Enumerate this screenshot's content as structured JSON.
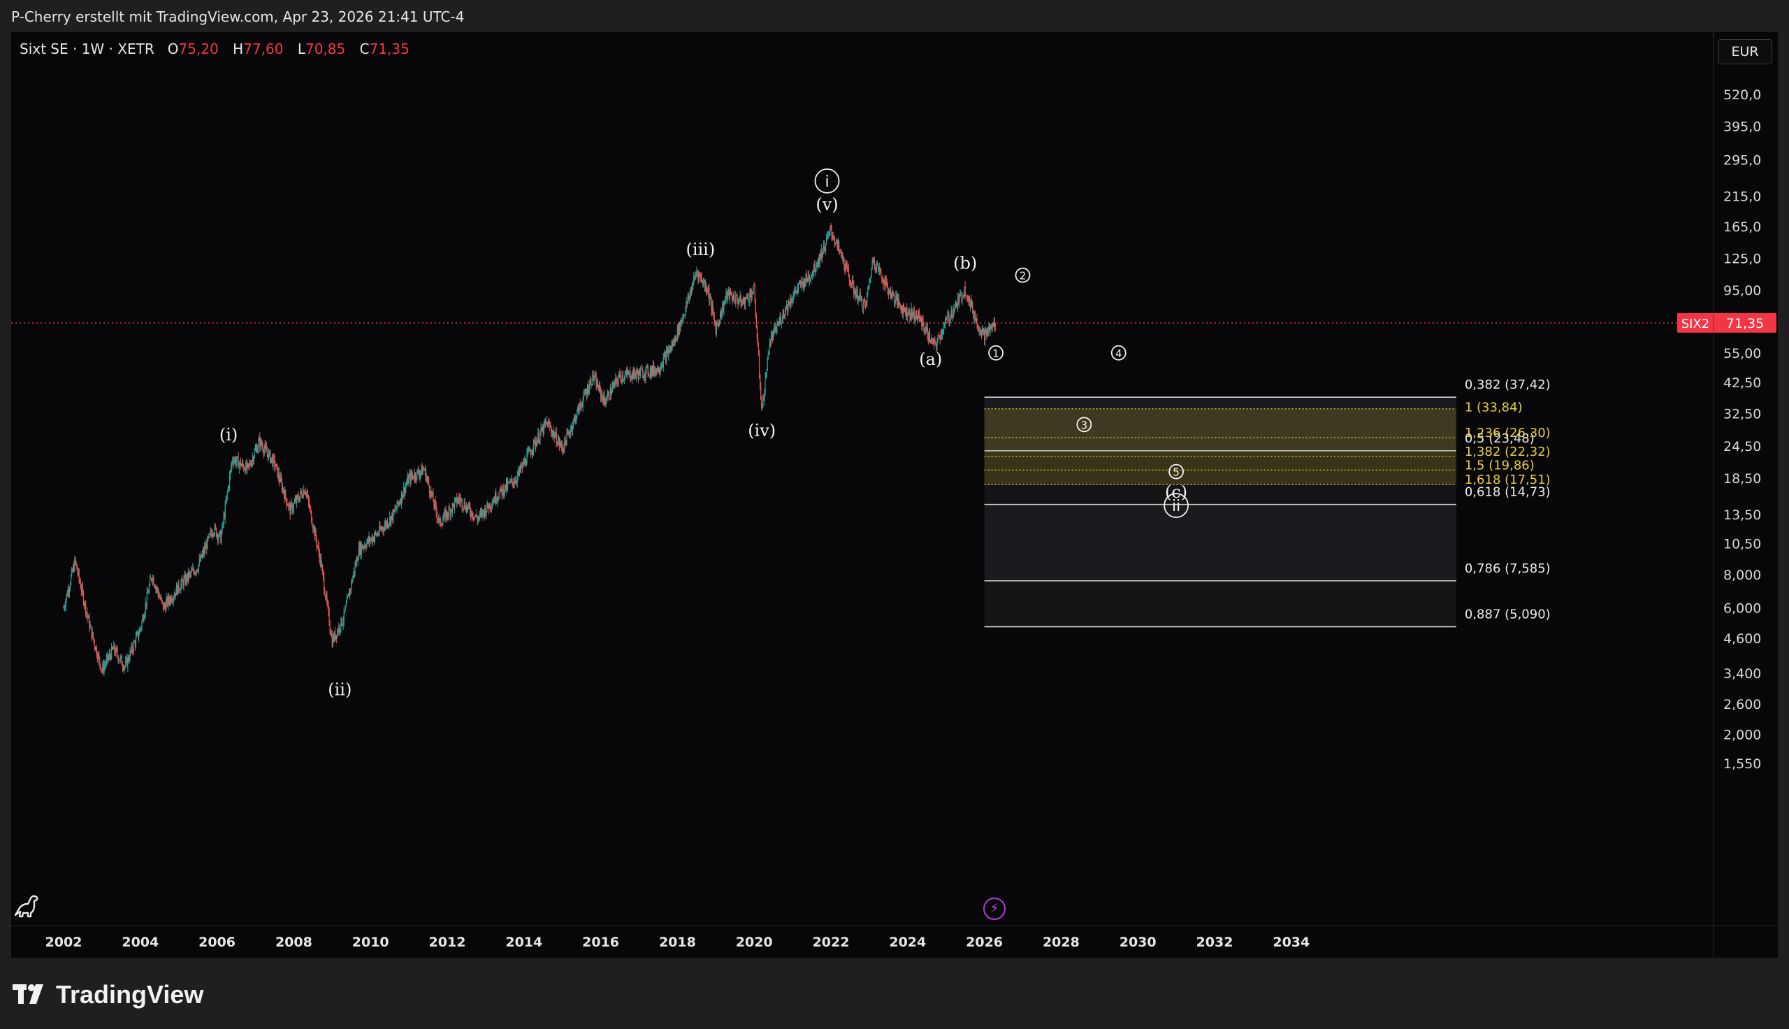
{
  "header": {
    "credit": "P-Cherry erstellt mit TradingView.com, Apr 23, 2026 21:41 UTC-4"
  },
  "legend": {
    "symbol": "Sixt SE · 1W · XETR",
    "o_label": "O",
    "o_value": "75,20",
    "h_label": "H",
    "h_value": "77,60",
    "l_label": "L",
    "l_value": "70,85",
    "c_label": "C",
    "c_value": "71,35"
  },
  "currency_button": "EUR",
  "brand": {
    "name": "TradingView"
  },
  "colors": {
    "up": "#26a69a",
    "down": "#ef5350",
    "price_line": "#f23645",
    "fib_zone": "#b9a92a",
    "fib_text_yellow": "#e8cf3a"
  },
  "chart_data": {
    "type": "candlestick",
    "title": "Sixt SE · 1W · XETR",
    "scale": "log",
    "grid": false,
    "ylim": [
      1.3,
      330
    ],
    "xlim": [
      2001.6,
      2036.4
    ],
    "y_ticks": [
      "1,550",
      "2,000",
      "2,600",
      "3,400",
      "4,600",
      "6,000",
      "8,000",
      "10,50",
      "13,50",
      "18,50",
      "24,50",
      "32,50",
      "42,50",
      "55,00",
      "95,00",
      "125,0",
      "165,0",
      "215,0",
      "295,0",
      "395,0",
      "520,0"
    ],
    "y_tick_values": [
      1.55,
      2.0,
      2.6,
      3.4,
      4.6,
      6.0,
      8.0,
      10.5,
      13.5,
      18.5,
      24.5,
      32.5,
      42.5,
      55,
      95,
      125,
      165,
      215,
      295,
      395,
      520
    ],
    "x_ticks": [
      "2002",
      "2004",
      "2006",
      "2008",
      "2010",
      "2012",
      "2014",
      "2016",
      "2018",
      "2020",
      "2022",
      "2024",
      "2026",
      "2028",
      "2030",
      "2032",
      "2034"
    ],
    "x_tick_values": [
      2002,
      2004,
      2006,
      2008,
      2010,
      2012,
      2014,
      2016,
      2018,
      2020,
      2022,
      2024,
      2026,
      2028,
      2030,
      2032,
      2034
    ],
    "price_path": [
      [
        2002.0,
        6.0
      ],
      [
        2002.3,
        9.0
      ],
      [
        2002.7,
        5.0
      ],
      [
        2003.0,
        3.5
      ],
      [
        2003.3,
        4.2
      ],
      [
        2003.6,
        3.6
      ],
      [
        2004.0,
        5.0
      ],
      [
        2004.3,
        8.0
      ],
      [
        2004.6,
        6.0
      ],
      [
        2005.0,
        7.2
      ],
      [
        2005.5,
        8.6
      ],
      [
        2005.9,
        12.0
      ],
      [
        2006.1,
        11.0
      ],
      [
        2006.4,
        22.0
      ],
      [
        2006.8,
        20.0
      ],
      [
        2007.1,
        25.5
      ],
      [
        2007.5,
        21.0
      ],
      [
        2007.9,
        14.0
      ],
      [
        2008.3,
        17.0
      ],
      [
        2008.7,
        9.0
      ],
      [
        2009.0,
        4.5
      ],
      [
        2009.3,
        5.5
      ],
      [
        2009.7,
        10.0
      ],
      [
        2010.2,
        11.5
      ],
      [
        2010.6,
        13.5
      ],
      [
        2011.0,
        18.5
      ],
      [
        2011.4,
        20.0
      ],
      [
        2011.8,
        12.5
      ],
      [
        2012.3,
        15.5
      ],
      [
        2012.8,
        13.0
      ],
      [
        2013.3,
        16.0
      ],
      [
        2013.8,
        18.5
      ],
      [
        2014.2,
        24.0
      ],
      [
        2014.6,
        30.0
      ],
      [
        2015.0,
        24.0
      ],
      [
        2015.4,
        33.0
      ],
      [
        2015.8,
        45.0
      ],
      [
        2016.1,
        36.0
      ],
      [
        2016.5,
        45.0
      ],
      [
        2017.0,
        46.0
      ],
      [
        2017.5,
        48.0
      ],
      [
        2017.9,
        60.0
      ],
      [
        2018.2,
        80.0
      ],
      [
        2018.5,
        112.0
      ],
      [
        2018.8,
        95.0
      ],
      [
        2019.0,
        68.0
      ],
      [
        2019.3,
        92.0
      ],
      [
        2019.7,
        85.0
      ],
      [
        2020.0,
        95.0
      ],
      [
        2020.2,
        33.0
      ],
      [
        2020.4,
        60.0
      ],
      [
        2020.8,
        80.0
      ],
      [
        2021.1,
        95.0
      ],
      [
        2021.5,
        110.0
      ],
      [
        2021.8,
        135.0
      ],
      [
        2022.0,
        160.0
      ],
      [
        2022.3,
        125.0
      ],
      [
        2022.6,
        95.0
      ],
      [
        2022.9,
        82.0
      ],
      [
        2023.1,
        125.0
      ],
      [
        2023.5,
        95.0
      ],
      [
        2023.9,
        80.0
      ],
      [
        2024.3,
        75.0
      ],
      [
        2024.7,
        58.0
      ],
      [
        2025.0,
        72.0
      ],
      [
        2025.3,
        85.0
      ],
      [
        2025.5,
        96.0
      ],
      [
        2025.8,
        72.0
      ],
      [
        2026.0,
        64.0
      ],
      [
        2026.3,
        71.35
      ]
    ],
    "last_price": {
      "symbol": "SIX2",
      "value": "71,35"
    },
    "wave_labels": [
      "(i)",
      "(ii)",
      "(iii)",
      "(iv)",
      "(v)",
      "i",
      "(a)",
      "(b)",
      "(c)",
      "ii",
      "1",
      "2",
      "3",
      "4",
      "5"
    ],
    "wave_label_points": [
      {
        "label": "(i)",
        "x": 2006.3,
        "y": 27.0
      },
      {
        "label": "(ii)",
        "x": 2009.2,
        "y": 2.95
      },
      {
        "label": "(iii)",
        "x": 2018.6,
        "y": 135.0
      },
      {
        "label": "(iv)",
        "x": 2020.2,
        "y": 28.0
      },
      {
        "label": "(v)",
        "x": 2021.9,
        "y": 200.0
      },
      {
        "label": "i",
        "x": 2021.9,
        "y": 245.0
      },
      {
        "label": "(a)",
        "x": 2024.6,
        "y": 52.0
      },
      {
        "label": "(b)",
        "x": 2025.5,
        "y": 120.0
      },
      {
        "label": "(c)",
        "x": 2031.0,
        "y": 16.4
      },
      {
        "label": "ii",
        "x": 2031.0,
        "y": 14.6
      },
      {
        "label": "1",
        "x": 2026.3,
        "y": 55.0
      },
      {
        "label": "2",
        "x": 2027.0,
        "y": 108.0
      },
      {
        "label": "3",
        "x": 2028.6,
        "y": 29.5
      },
      {
        "label": "4",
        "x": 2029.5,
        "y": 55.0
      },
      {
        "label": "5",
        "x": 2031.0,
        "y": 19.6
      }
    ],
    "fib_retracement": {
      "x_range": [
        2026.0,
        2038.3
      ],
      "levels": [
        {
          "label": "0,382 (37,42)",
          "value": 37.42
        },
        {
          "label": "0,5 (23,48)",
          "value": 23.48
        },
        {
          "label": "0,618 (14,73)",
          "value": 14.73
        },
        {
          "label": "0,786 (7,585)",
          "value": 7.585
        },
        {
          "label": "0,887 (5,090)",
          "value": 5.09
        }
      ]
    },
    "fib_extension": {
      "levels": [
        {
          "label": "1 (33,84)",
          "value": 33.84
        },
        {
          "label": "1,236 (26,30)",
          "value": 26.3
        },
        {
          "label": "1,382 (22,32)",
          "value": 22.32
        },
        {
          "label": "1,5 (19,86)",
          "value": 19.86
        },
        {
          "label": "1,618 (17,51)",
          "value": 17.51
        }
      ]
    }
  }
}
